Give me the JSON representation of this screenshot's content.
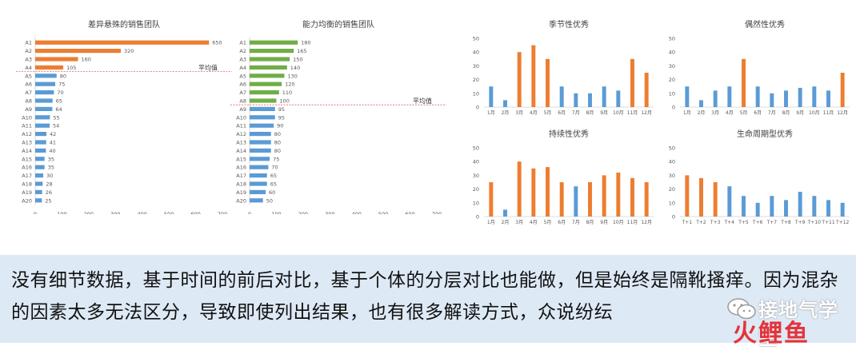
{
  "colors": {
    "orange": "#ED7D31",
    "blue": "#5B9BD5",
    "green": "#70AD47",
    "avg_line": "#e8606a",
    "axis_text": "#595959"
  },
  "chart_data": [
    {
      "id": "c1",
      "type": "bar",
      "orientation": "horizontal",
      "title": "差异悬殊的销售团队",
      "categories": [
        "A1",
        "A2",
        "A3",
        "A4",
        "A5",
        "A6",
        "A7",
        "A8",
        "A9",
        "A10",
        "A11",
        "A12",
        "A13",
        "A14",
        "A15",
        "A16",
        "A17",
        "A18",
        "A19",
        "A20"
      ],
      "values": [
        650,
        320,
        160,
        105,
        80,
        75,
        70,
        65,
        64,
        55,
        54,
        42,
        41,
        40,
        35,
        35,
        30,
        28,
        26,
        25
      ],
      "bar_colors": [
        "orange",
        "orange",
        "orange",
        "orange",
        "blue",
        "blue",
        "blue",
        "blue",
        "blue",
        "blue",
        "blue",
        "blue",
        "blue",
        "blue",
        "blue",
        "blue",
        "blue",
        "blue",
        "blue",
        "blue"
      ],
      "xlim": [
        0,
        700
      ],
      "xticks": [
        0,
        100,
        200,
        300,
        400,
        500,
        600,
        700
      ],
      "average_label": "平均值",
      "average_between": [
        3,
        4
      ]
    },
    {
      "id": "c2",
      "type": "bar",
      "orientation": "horizontal",
      "title": "能力均衡的销售团队",
      "categories": [
        "A1",
        "A2",
        "A3",
        "A4",
        "A5",
        "A6",
        "A7",
        "A8",
        "A9",
        "A10",
        "A11",
        "A12",
        "A13",
        "A14",
        "A15",
        "A16",
        "A17",
        "A18",
        "A19",
        "A20"
      ],
      "values": [
        180,
        165,
        150,
        140,
        130,
        120,
        110,
        100,
        95,
        95,
        90,
        80,
        80,
        80,
        75,
        70,
        65,
        65,
        60,
        50
      ],
      "bar_colors": [
        "green",
        "green",
        "green",
        "green",
        "green",
        "green",
        "green",
        "green",
        "blue",
        "blue",
        "blue",
        "blue",
        "blue",
        "blue",
        "blue",
        "blue",
        "blue",
        "blue",
        "blue",
        "blue"
      ],
      "xlim": [
        0,
        700
      ],
      "xticks": [
        0,
        100,
        200,
        300,
        400,
        500,
        600,
        700
      ],
      "average_label": "平均值",
      "average_between": [
        7,
        8
      ]
    },
    {
      "id": "c3",
      "type": "bar",
      "orientation": "vertical",
      "title": "季节性优秀",
      "categories": [
        "1月",
        "2月",
        "3月",
        "4月",
        "5月",
        "6月",
        "7月",
        "8月",
        "9月",
        "10月",
        "11月",
        "12月"
      ],
      "values": [
        15,
        5,
        40,
        45,
        35,
        15,
        10,
        10,
        15,
        12,
        35,
        25
      ],
      "bar_colors": [
        "blue",
        "blue",
        "orange",
        "orange",
        "orange",
        "blue",
        "blue",
        "blue",
        "blue",
        "blue",
        "orange",
        "orange"
      ],
      "ylim": [
        0,
        50
      ],
      "yticks": [
        0,
        10,
        20,
        30,
        40,
        50
      ]
    },
    {
      "id": "c4",
      "type": "bar",
      "orientation": "vertical",
      "title": "偶然性优秀",
      "categories": [
        "1月",
        "2月",
        "3月",
        "4月",
        "5月",
        "6月",
        "7月",
        "8月",
        "9月",
        "10月",
        "11月",
        "12月"
      ],
      "values": [
        15,
        5,
        12,
        15,
        35,
        15,
        10,
        12,
        14,
        15,
        12,
        25
      ],
      "bar_colors": [
        "blue",
        "blue",
        "blue",
        "blue",
        "orange",
        "blue",
        "blue",
        "blue",
        "blue",
        "blue",
        "blue",
        "orange"
      ],
      "ylim": [
        0,
        50
      ],
      "yticks": [
        0,
        10,
        20,
        30,
        40,
        50
      ]
    },
    {
      "id": "c5",
      "type": "bar",
      "orientation": "vertical",
      "title": "持续性优秀",
      "categories": [
        "1月",
        "2月",
        "3月",
        "4月",
        "5月",
        "6月",
        "7月",
        "8月",
        "9月",
        "10月",
        "11月",
        "12月"
      ],
      "values": [
        25,
        5,
        40,
        35,
        36,
        25,
        22,
        25,
        30,
        32,
        28,
        25
      ],
      "bar_colors": [
        "orange",
        "blue",
        "orange",
        "orange",
        "orange",
        "orange",
        "blue",
        "orange",
        "orange",
        "orange",
        "orange",
        "orange"
      ],
      "ylim": [
        0,
        50
      ],
      "yticks": [
        0,
        10,
        20,
        30,
        40,
        50
      ]
    },
    {
      "id": "c6",
      "type": "bar",
      "orientation": "vertical",
      "title": "生命周期型优秀",
      "categories": [
        "T+1",
        "T+2",
        "T+3",
        "T+4",
        "T+5",
        "T+6",
        "T+7",
        "T+8",
        "T+9",
        "T+10",
        "T+11",
        "T+12"
      ],
      "values": [
        30,
        28,
        25,
        22,
        15,
        10,
        15,
        12,
        18,
        15,
        12,
        10
      ],
      "bar_colors": [
        "orange",
        "orange",
        "orange",
        "blue",
        "blue",
        "blue",
        "blue",
        "blue",
        "blue",
        "blue",
        "blue",
        "blue"
      ],
      "ylim": [
        0,
        50
      ],
      "yticks": [
        0,
        10,
        20,
        30,
        40,
        50
      ]
    }
  ],
  "caption": {
    "text": "没有细节数据，基于时间的前后对比，基于个体的分层对比也能做，但是始终是隔靴搔痒。因为混杂的因素太多无法区分，导致即使列出结果，也有很多解读方式，众说纷纭"
  },
  "watermark": {
    "wechat_text": "接地气学堂",
    "logo_text": "火鲤鱼"
  }
}
